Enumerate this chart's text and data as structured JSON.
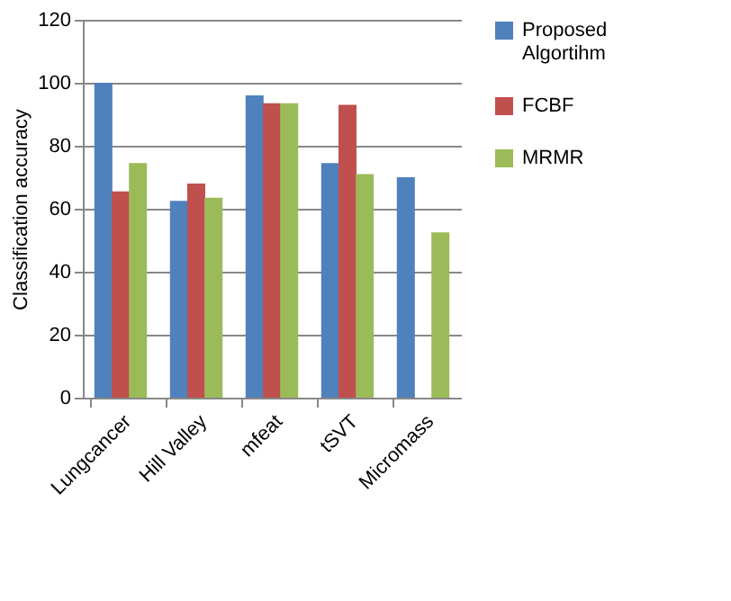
{
  "chart_data": {
    "type": "bar",
    "ylabel": "Classification accuracy",
    "categories": [
      "Lungcancer",
      "Hill Valley",
      "mfeat",
      "tSVT",
      "Micromass"
    ],
    "series": [
      {
        "name": "Proposed Algortihm",
        "color": "#4f81bd",
        "values": [
          100,
          62.5,
          96,
          74.5,
          70
        ]
      },
      {
        "name": "FCBF",
        "color": "#c0504d",
        "values": [
          65.5,
          68,
          93.5,
          93,
          null
        ]
      },
      {
        "name": "MRMR",
        "color": "#9bbb59",
        "values": [
          74.5,
          63.5,
          93.5,
          71,
          52.5
        ]
      }
    ],
    "ylim": [
      0,
      120
    ],
    "yticks": [
      0,
      20,
      40,
      60,
      80,
      100,
      120
    ],
    "grid": "y",
    "legend": "right"
  }
}
